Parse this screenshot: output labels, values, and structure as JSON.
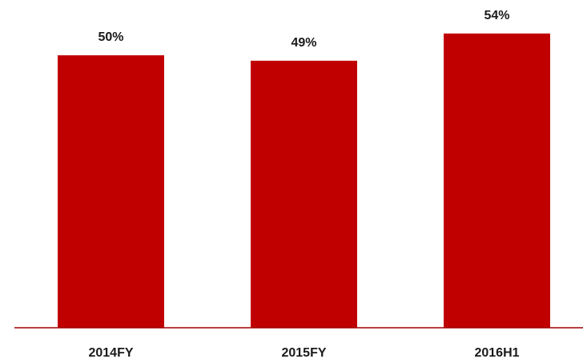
{
  "chart_data": {
    "type": "bar",
    "categories": [
      "2014FY",
      "2015FY",
      "2016H1"
    ],
    "values": [
      50,
      49,
      54
    ],
    "value_labels": [
      "50%",
      "49%",
      "54%"
    ],
    "color": "#c00000",
    "ylim": [
      0,
      60
    ]
  }
}
